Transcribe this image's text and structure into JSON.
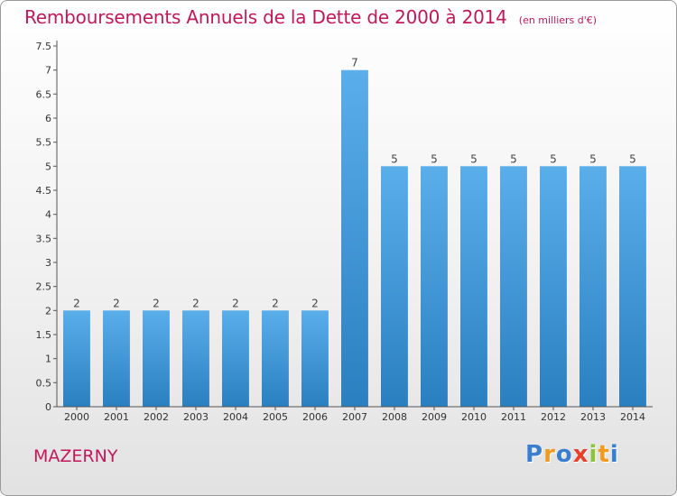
{
  "header": {
    "title": "Remboursements Annuels de la Dette de 2000 à 2014",
    "unit": "(en milliers d'€)"
  },
  "footer": {
    "place": "MAZERNY",
    "brand": {
      "letters": [
        "P",
        "r",
        "o",
        "x",
        "i",
        "t",
        "i"
      ],
      "colors": [
        "#3a7fcf",
        "#f29a1f",
        "#3a7fcf",
        "#e8412b",
        "#8cc43c",
        "#f29a1f",
        "#3a7fcf"
      ]
    }
  },
  "chart_data": {
    "type": "bar",
    "title": "Remboursements Annuels de la Dette de 2000 à 2014",
    "subtitle": "(en milliers d'€)",
    "categories": [
      "2000",
      "2001",
      "2002",
      "2003",
      "2004",
      "2005",
      "2006",
      "2007",
      "2008",
      "2009",
      "2010",
      "2011",
      "2012",
      "2013",
      "2014"
    ],
    "values": [
      2,
      2,
      2,
      2,
      2,
      2,
      2,
      7,
      5,
      5,
      5,
      5,
      5,
      5,
      5
    ],
    "data_labels": [
      "2",
      "2",
      "2",
      "2",
      "2",
      "2",
      "2",
      "7",
      "5",
      "5",
      "5",
      "5",
      "5",
      "5",
      "5"
    ],
    "yticks": [
      0,
      0.5,
      1,
      1.5,
      2,
      2.5,
      3,
      3.5,
      4,
      4.5,
      5,
      5.5,
      6,
      6.5,
      7,
      7.5
    ],
    "ytick_labels": [
      "0",
      "0.5",
      "1",
      "1.5",
      "2",
      "2.5",
      "3",
      "3.5",
      "4",
      "4.5",
      "5",
      "5.5",
      "6",
      "6.5",
      "7",
      "7.5"
    ],
    "ylim": [
      0,
      7.5
    ],
    "grid": false,
    "colors": {
      "bar_light": "#5aaeea",
      "bar_dark": "#2a7fc0",
      "axis": "#555555"
    }
  }
}
